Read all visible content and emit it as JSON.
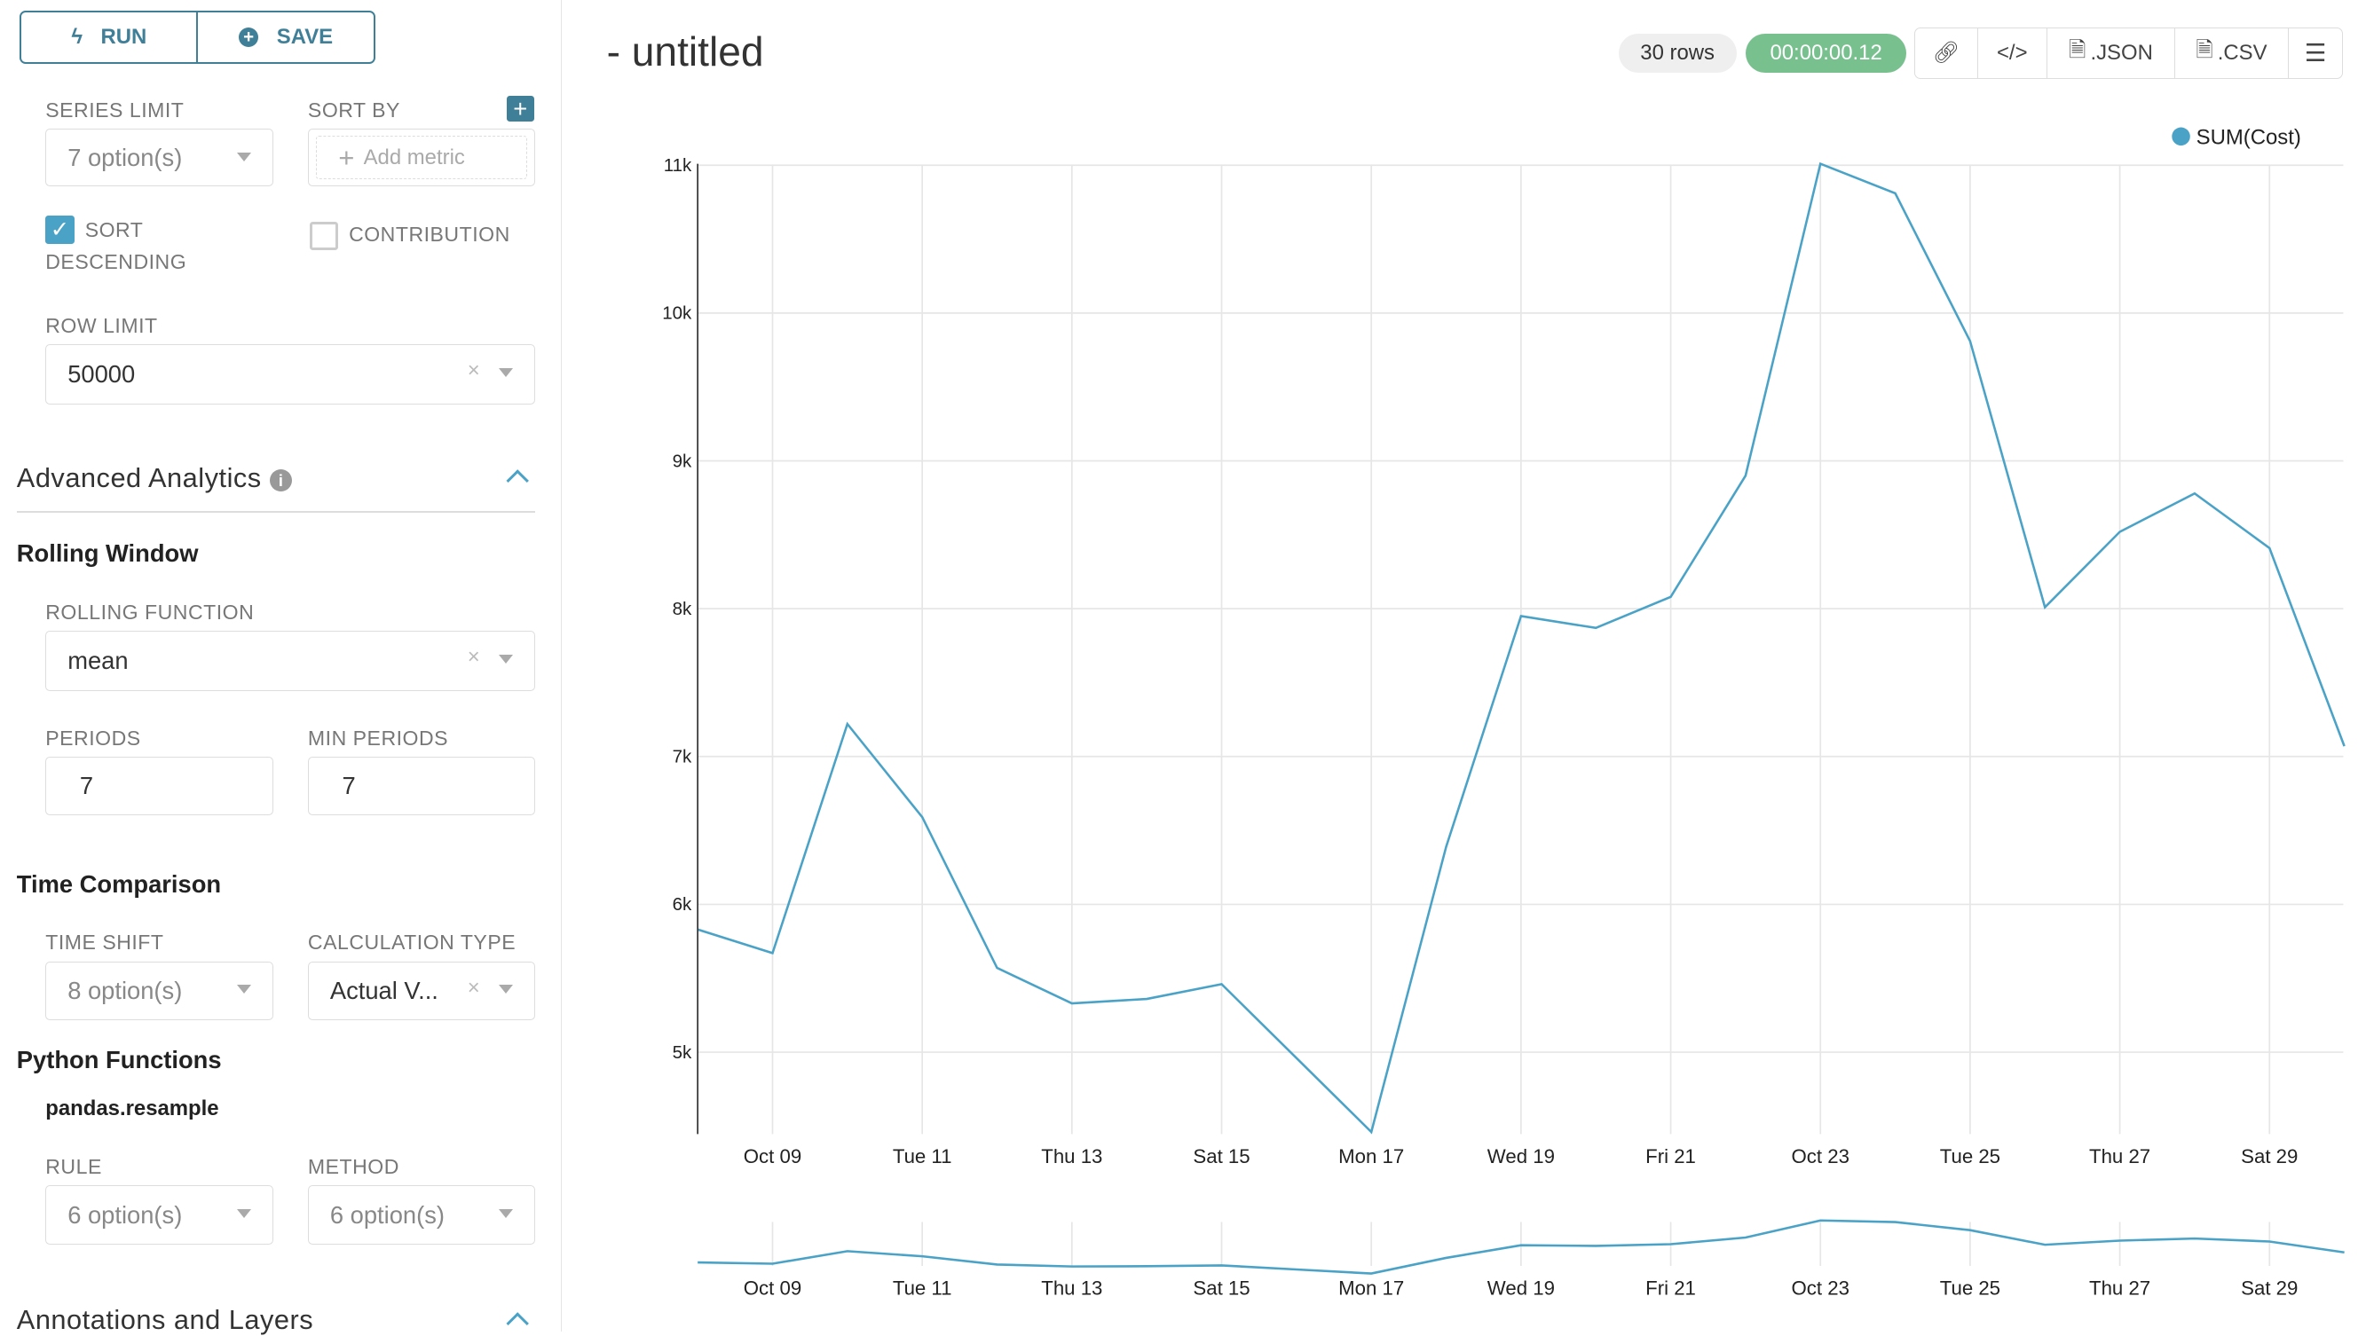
{
  "toolbar": {
    "run_label": "RUN",
    "save_label": "SAVE"
  },
  "controls": {
    "series_limit": {
      "label": "SERIES LIMIT",
      "value": "7 option(s)"
    },
    "sort_by": {
      "label": "SORT BY",
      "placeholder": "Add metric"
    },
    "sort_descending": {
      "label_line1": "SORT",
      "label_line2": "DESCENDING",
      "checked": true
    },
    "contribution": {
      "label": "CONTRIBUTION",
      "checked": false
    },
    "row_limit": {
      "label": "ROW LIMIT",
      "value": "50000"
    }
  },
  "advanced_analytics": {
    "title": "Advanced Analytics",
    "rolling_window": {
      "title": "Rolling Window",
      "function_label": "ROLLING FUNCTION",
      "function_value": "mean",
      "periods_label": "PERIODS",
      "periods_value": "7",
      "min_periods_label": "MIN PERIODS",
      "min_periods_value": "7"
    },
    "time_comparison": {
      "title": "Time Comparison",
      "time_shift_label": "TIME SHIFT",
      "time_shift_value": "8 option(s)",
      "calc_type_label": "CALCULATION TYPE",
      "calc_type_value": "Actual V..."
    },
    "python_functions": {
      "title": "Python Functions",
      "subtitle": "pandas.resample",
      "rule_label": "RULE",
      "rule_value": "6 option(s)",
      "method_label": "METHOD",
      "method_value": "6 option(s)"
    }
  },
  "annotations": {
    "title": "Annotations and Layers"
  },
  "header": {
    "title": "- untitled",
    "rows": "30 rows",
    "timer": "00:00:00.12",
    "json_label": ".JSON",
    "csv_label": ".CSV"
  },
  "colors": {
    "accent": "#3f7f98",
    "line": "#4aa3c7",
    "timer": "#79c08f"
  },
  "chart_data": {
    "type": "line",
    "legend": [
      "SUM(Cost)"
    ],
    "legend_position": "top-right",
    "series": [
      {
        "name": "SUM(Cost)",
        "x": [
          "2018-10-08",
          "2018-10-09",
          "2018-10-10",
          "2018-10-11",
          "2018-10-12",
          "2018-10-13",
          "2018-10-14",
          "2018-10-15",
          "2018-10-16",
          "2018-10-17",
          "2018-10-18",
          "2018-10-19",
          "2018-10-20",
          "2018-10-21",
          "2018-10-22",
          "2018-10-23",
          "2018-10-24",
          "2018-10-25",
          "2018-10-26",
          "2018-10-27",
          "2018-10-28",
          "2018-10-29",
          "2018-10-30"
        ],
        "values": [
          5830,
          5670,
          7220,
          6590,
          5570,
          5330,
          5360,
          5460,
          4960,
          4460,
          6390,
          7950,
          7870,
          8080,
          8900,
          11010,
          10810,
          9810,
          8010,
          8520,
          8780,
          8410,
          7070
        ]
      }
    ],
    "x_tick_labels": [
      "Oct 09",
      "Tue 11",
      "Thu 13",
      "Sat 15",
      "Mon 17",
      "Wed 19",
      "Fri 21",
      "Oct 23",
      "Tue 25",
      "Thu 27",
      "Sat 29"
    ],
    "y_tick_labels": [
      "5k",
      "6k",
      "7k",
      "8k",
      "9k",
      "10k",
      "11k"
    ],
    "y_ticks": [
      5000,
      6000,
      7000,
      8000,
      9000,
      10000,
      11000
    ],
    "ylim": [
      4450,
      11050
    ],
    "grid": true
  }
}
